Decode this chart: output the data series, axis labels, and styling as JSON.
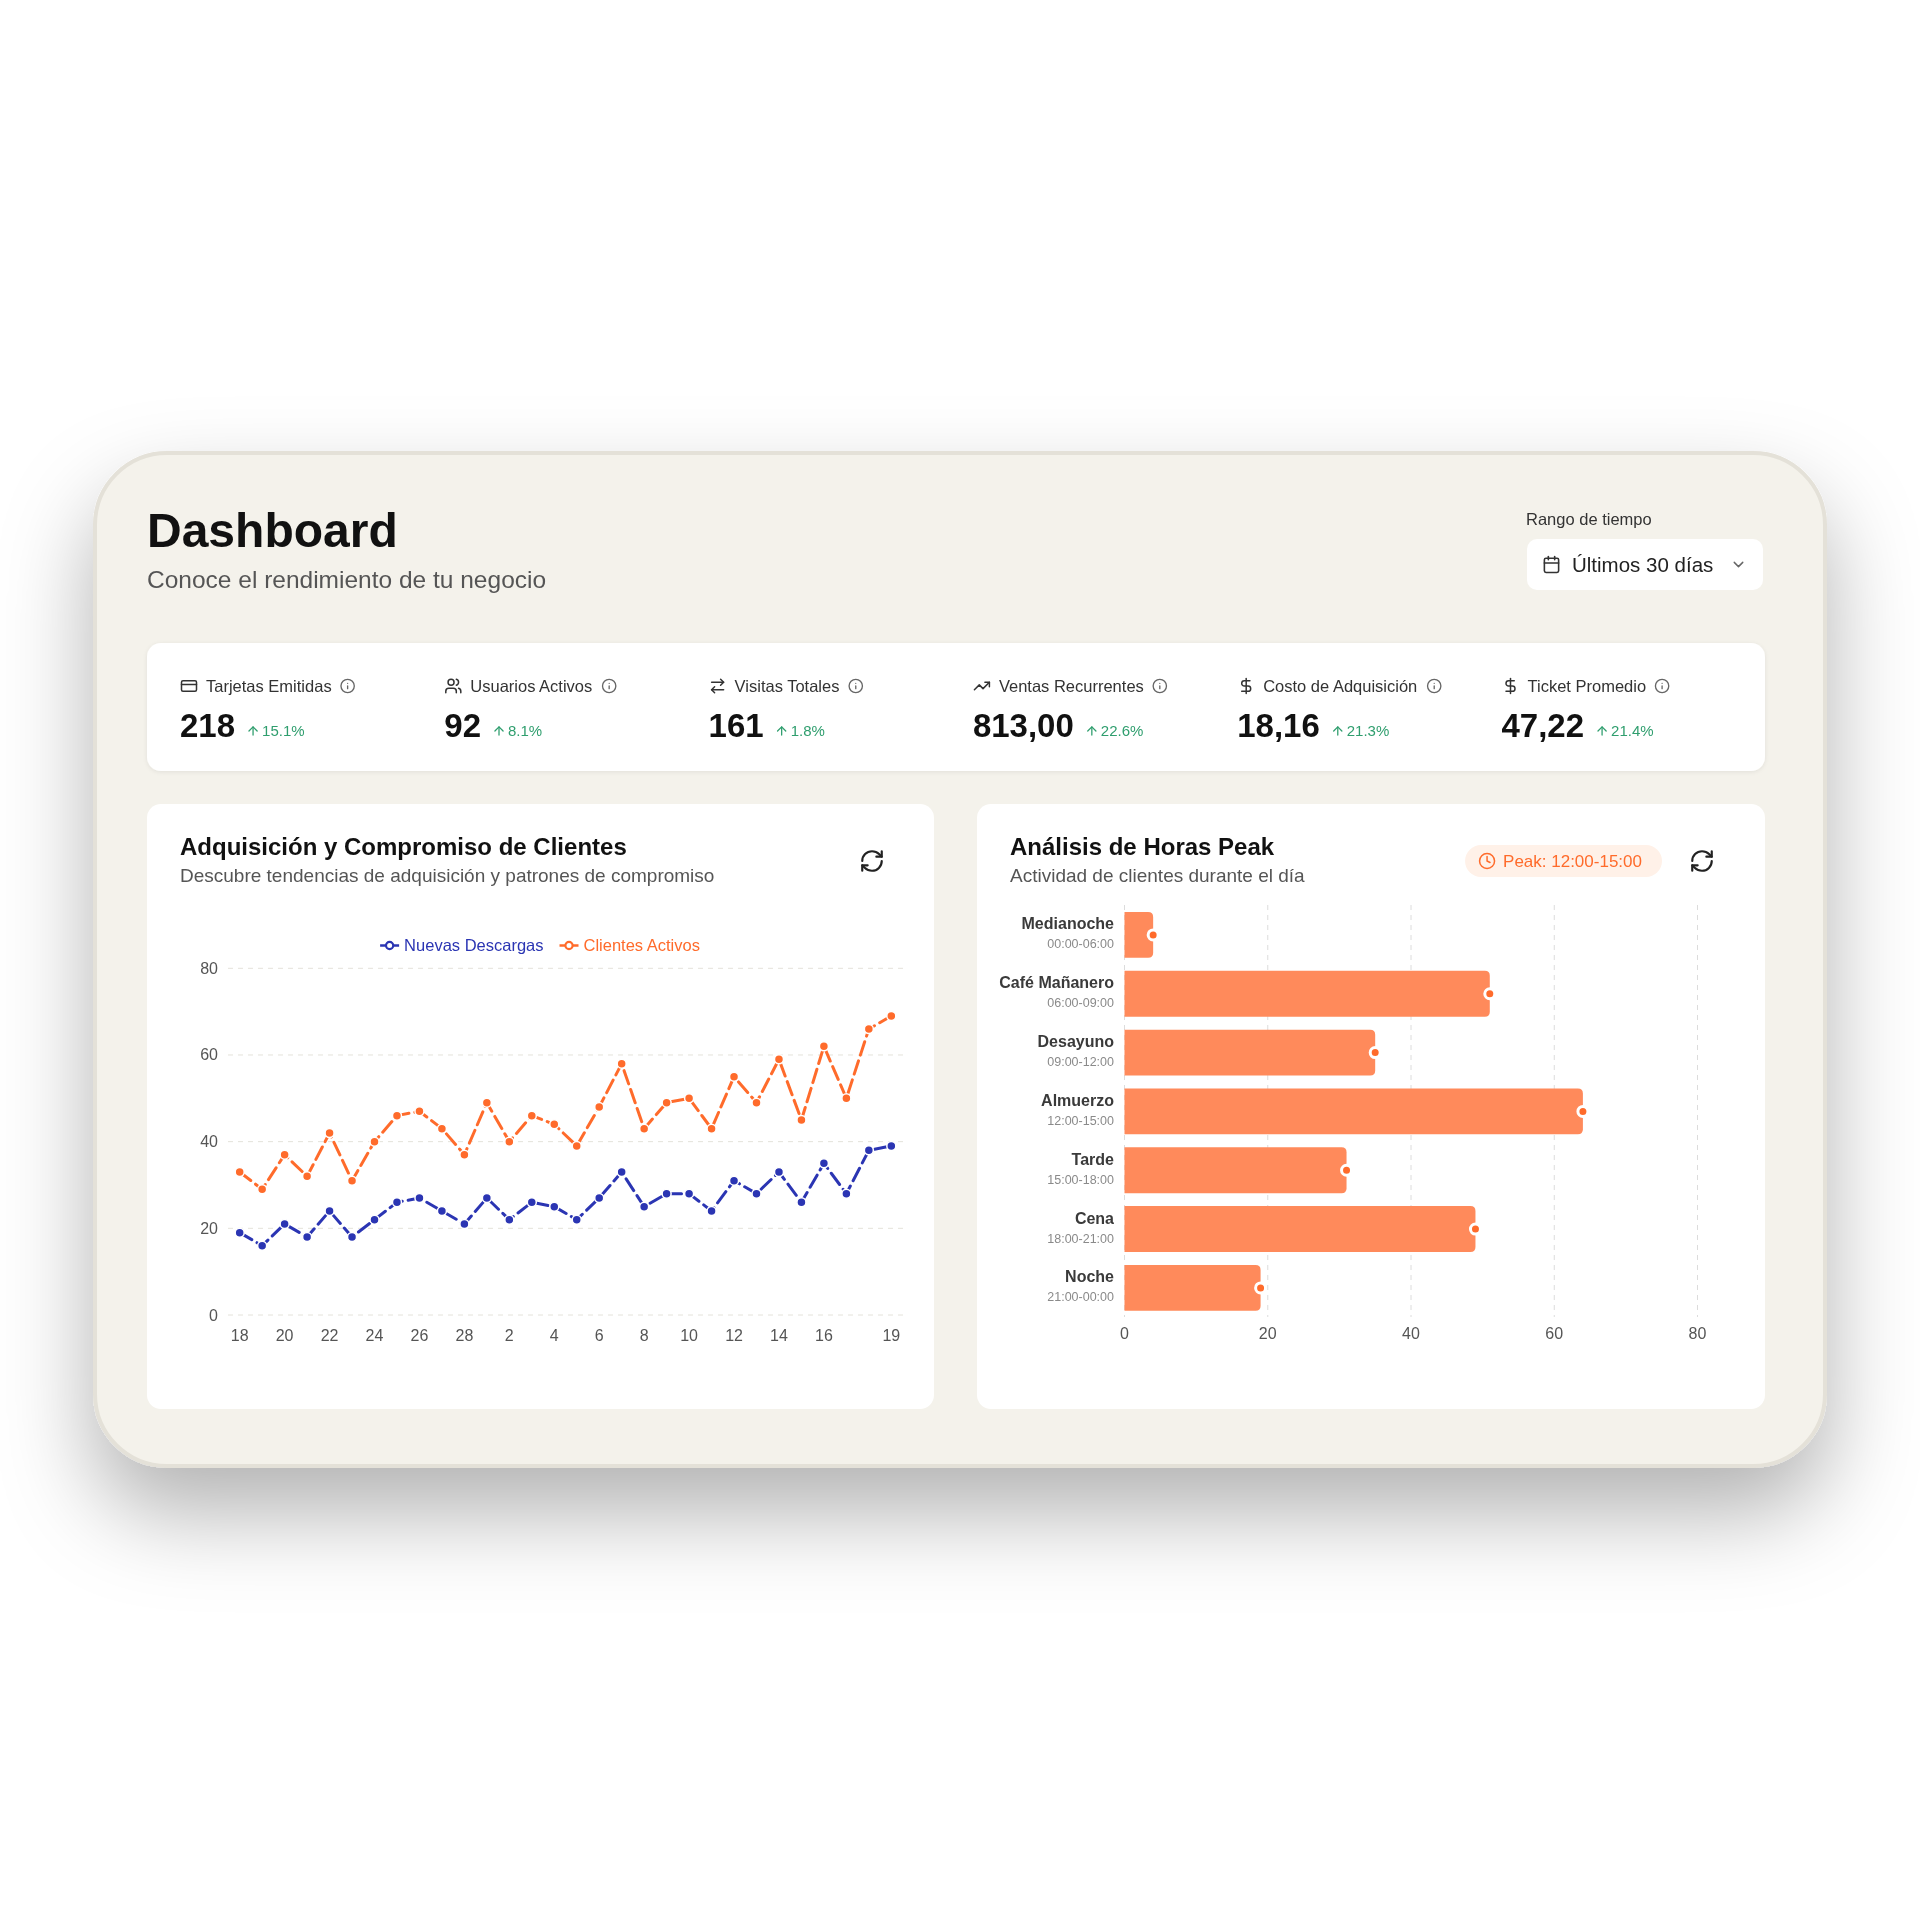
{
  "chart_data": [
    {
      "type": "other",
      "title": "Dashboard",
      "subtitle": "Conoce el rendimiento de tu negocio",
      "annotations": [
        "Rango de tiempo",
        "Últimos 30 días"
      ]
    },
    {
      "type": "other",
      "title": "Tarjetas Emitidas",
      "annotations": [
        "218",
        "15.1%"
      ]
    },
    {
      "type": "other",
      "title": "Usuarios Activos",
      "annotations": [
        "92",
        "8.1%"
      ]
    },
    {
      "type": "other",
      "title": "Visitas Totales",
      "annotations": [
        "161",
        "1.8%"
      ]
    },
    {
      "type": "other",
      "title": "Ventas Recurrentes",
      "annotations": [
        "813,00",
        "22.6%"
      ]
    },
    {
      "type": "other",
      "title": "Costo de Adquisición",
      "annotations": [
        "18,16",
        "21.3%"
      ]
    },
    {
      "type": "other",
      "title": "Ticket Promedio",
      "annotations": [
        "47,22",
        "21.4%"
      ]
    },
    {
      "type": "line",
      "title": "Adquisición y Compromiso de Clientes",
      "subtitle": "Descubre tendencias de adquisición y patrones de compromiso",
      "categories": [
        "18",
        null,
        "20",
        null,
        "22",
        null,
        "24",
        null,
        "26",
        null,
        "28",
        null,
        "2",
        null,
        "4",
        null,
        "6",
        null,
        "8",
        null,
        "10",
        null,
        "12",
        null,
        "14",
        null,
        "16",
        null,
        null,
        "19"
      ],
      "series": [
        {
          "name": "Nuevas Descargas",
          "color": "#2b35b3",
          "values": [
            19,
            16,
            21,
            18,
            24,
            18,
            22,
            26,
            27,
            24,
            21,
            27,
            22,
            26,
            25,
            22,
            27,
            33,
            25,
            28,
            28,
            24,
            31,
            28,
            33,
            26,
            35,
            28,
            38,
            39
          ]
        },
        {
          "name": "Clientes Activos",
          "color": "#ff6b2b",
          "values": [
            33,
            29,
            37,
            32,
            42,
            31,
            40,
            46,
            47,
            43,
            37,
            49,
            40,
            46,
            44,
            39,
            48,
            58,
            43,
            49,
            50,
            43,
            55,
            49,
            59,
            45,
            62,
            50,
            66,
            69
          ]
        }
      ],
      "ylim": [
        0,
        80
      ],
      "yticks": [
        0,
        20,
        40,
        60,
        80
      ],
      "grid": "y",
      "legend": "top",
      "marker": "circle",
      "line_style": "dashed"
    },
    {
      "type": "bar",
      "orientation": "horizontal",
      "title": "Análisis de Horas Peak",
      "subtitle": "Actividad de clientes durante el día",
      "annotations": [
        "Peak: 12:00-15:00"
      ],
      "categories": [
        "Medianoche\n00:00-06:00",
        "Café Mañanero\n06:00-09:00",
        "Desayuno\n09:00-12:00",
        "Almuerzo\n12:00-15:00",
        "Tarde\n15:00-18:00",
        "Cena\n18:00-21:00",
        "Noche\n21:00-00:00"
      ],
      "series": [
        {
          "type": "bar",
          "color": "#ff8a5b",
          "values": [
            4,
            51,
            35,
            64,
            31,
            49,
            19
          ]
        },
        {
          "type": "scatter",
          "color": "#ff6b2b",
          "values": [
            4,
            51,
            35,
            64,
            31,
            49,
            19
          ]
        }
      ],
      "xlim": [
        0,
        80
      ],
      "xticks": [
        0,
        20,
        40,
        60,
        80
      ],
      "grid": "x",
      "marker": "circle"
    }
  ]
}
